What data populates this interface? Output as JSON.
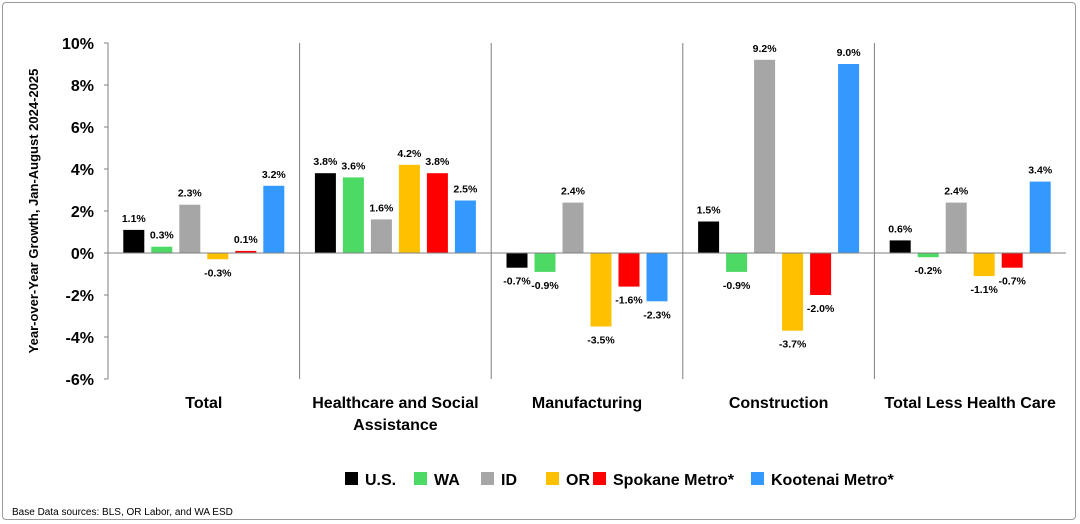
{
  "chart_data": {
    "type": "bar",
    "ylabel": "Year-over-Year Growth, Jan-August 2024-2025",
    "ylim": [
      -6,
      10
    ],
    "yticks": [
      10,
      8,
      6,
      4,
      2,
      0,
      -2,
      -4,
      -6
    ],
    "ytick_labels": [
      "10%",
      "8%",
      "6%",
      "4%",
      "2%",
      "0%",
      "-2%",
      "-4%",
      "-6%"
    ],
    "categories": [
      [
        "Total"
      ],
      [
        "Healthcare and Social",
        "Assistance"
      ],
      [
        "Manufacturing"
      ],
      [
        "Construction"
      ],
      [
        "Total Less Health Care"
      ]
    ],
    "series": [
      {
        "name": "U.S.",
        "color": "#000000",
        "values": [
          1.1,
          3.8,
          -0.7,
          1.5,
          0.6
        ],
        "labels": [
          "1.1%",
          "3.8%",
          "-0.7%",
          "1.5%",
          "0.6%"
        ]
      },
      {
        "name": "WA",
        "color": "#4cd964",
        "values": [
          0.3,
          3.6,
          -0.9,
          -0.9,
          -0.2
        ],
        "labels": [
          "0.3%",
          "3.6%",
          "-0.9%",
          "-0.9%",
          "-0.2%"
        ]
      },
      {
        "name": "ID",
        "color": "#a6a6a6",
        "values": [
          2.3,
          1.6,
          2.4,
          9.2,
          2.4
        ],
        "labels": [
          "2.3%",
          "1.6%",
          "2.4%",
          "9.2%",
          "2.4%"
        ]
      },
      {
        "name": "OR",
        "color": "#ffc000",
        "values": [
          -0.3,
          4.2,
          -3.5,
          -3.7,
          -1.1
        ],
        "labels": [
          "-0.3%",
          "4.2%",
          "-3.5%",
          "-3.7%",
          "-1.1%"
        ]
      },
      {
        "name": "Spokane Metro*",
        "color": "#ff0000",
        "values": [
          0.1,
          3.8,
          -1.6,
          -2.0,
          -0.7
        ],
        "labels": [
          "0.1%",
          "3.8%",
          "-1.6%",
          "-2.0%",
          "-0.7%"
        ]
      },
      {
        "name": "Kootenai Metro*",
        "color": "#3399ff",
        "values": [
          3.2,
          2.5,
          -2.3,
          9.0,
          3.4
        ],
        "labels": [
          "3.2%",
          "2.5%",
          "-2.3%",
          "9.0%",
          "3.4%"
        ]
      }
    ],
    "legend_position": "bottom",
    "grid": false
  },
  "source_note": "Base Data sources: BLS, OR Labor, and WA ESD"
}
